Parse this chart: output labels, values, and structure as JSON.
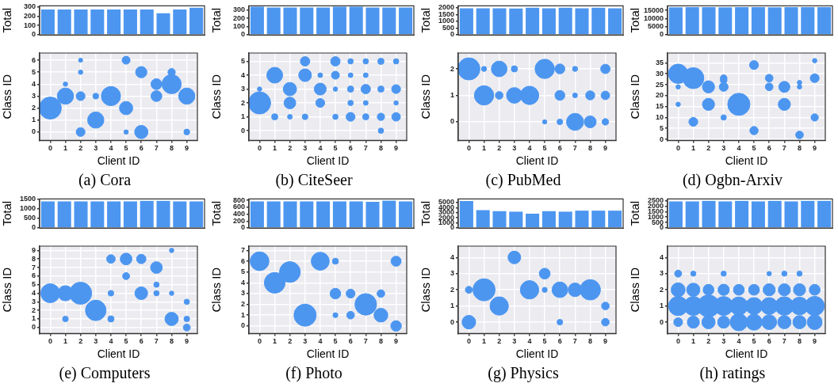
{
  "chart_data": [
    {
      "type": "bar",
      "ylabel": "Total",
      "categories": [
        null,
        null,
        null,
        null,
        null,
        null,
        null,
        null,
        null,
        null
      ],
      "values": [
        270,
        270,
        270,
        270,
        270,
        270,
        270,
        230,
        270,
        290
      ],
      "color": "#4c96f0",
      "ylim": [
        0,
        310
      ],
      "yticks": [
        0,
        100,
        200,
        300
      ],
      "tick_labels": "y"
    },
    {
      "type": "bubble",
      "xlabel": "Client ID",
      "ylabel": "Class ID",
      "color": "#4c96f0",
      "grid": true,
      "xlim": [
        -0.7,
        9.7
      ],
      "xticks": [
        0,
        1,
        2,
        3,
        4,
        5,
        6,
        7,
        8,
        9
      ],
      "ylim": [
        -0.7,
        6.6
      ],
      "yticks": [
        0,
        1,
        2,
        3,
        4,
        5,
        6
      ],
      "annotations": [
        "(a) Cora"
      ],
      "x": [
        0,
        1,
        1,
        2,
        2,
        2,
        2,
        3,
        3,
        4,
        5,
        5,
        5,
        6,
        6,
        7,
        7,
        8,
        8,
        9,
        9
      ],
      "values": [
        2,
        4,
        3,
        6,
        5,
        3,
        0,
        3,
        1,
        3,
        6,
        2,
        0,
        5,
        0,
        4,
        3,
        5,
        4,
        3,
        0
      ],
      "sizes": [
        1,
        0.04,
        0.54,
        0.035,
        0.04,
        0.16,
        0.16,
        0.07,
        0.54,
        0.75,
        0.13,
        0.36,
        0.04,
        0.26,
        0.36,
        0.24,
        0.24,
        0.11,
        0.75,
        0.54,
        0.07
      ]
    },
    {
      "type": "bar",
      "ylabel": "Total",
      "categories": [
        null,
        null,
        null,
        null,
        null,
        null,
        null,
        null,
        null,
        null
      ],
      "values": [
        340,
        330,
        330,
        330,
        330,
        340,
        340,
        330,
        330,
        330
      ],
      "color": "#4c96f0",
      "ylim": [
        0,
        350
      ],
      "yticks": [
        0,
        100,
        200,
        300
      ],
      "tick_labels": "y"
    },
    {
      "type": "bubble",
      "xlabel": "Client ID",
      "ylabel": "Class ID",
      "color": "#4c96f0",
      "grid": true,
      "xlim": [
        -0.7,
        9.7
      ],
      "xticks": [
        0,
        1,
        2,
        3,
        4,
        5,
        6,
        7,
        8,
        9
      ],
      "ylim": [
        -0.7,
        5.6
      ],
      "yticks": [
        0,
        1,
        2,
        3,
        4,
        5
      ],
      "annotations": [
        "(b) CiteSeer"
      ],
      "x": [
        0,
        0,
        1,
        1,
        2,
        2,
        2,
        3,
        3,
        3,
        4,
        4,
        4,
        5,
        5,
        5,
        5,
        6,
        6,
        6,
        6,
        6,
        7,
        7,
        7,
        7,
        7,
        8,
        8,
        8,
        8,
        9,
        9,
        9,
        9
      ],
      "values": [
        3,
        2,
        4,
        1,
        3,
        2,
        1,
        5,
        4,
        1,
        4,
        3,
        2,
        5,
        4,
        3,
        1,
        5,
        4,
        3,
        2,
        1,
        5,
        4,
        3,
        2,
        1,
        5,
        3,
        1,
        0,
        5,
        3,
        2,
        1
      ],
      "sizes": [
        0.04,
        1,
        0.51,
        0.08,
        0.36,
        0.28,
        0.046,
        0.18,
        0.33,
        0.066,
        0.046,
        0.29,
        0.16,
        0.18,
        0.13,
        0.04,
        0.059,
        0.059,
        0.046,
        0.08,
        0.059,
        0.16,
        0.059,
        0.046,
        0.18,
        0.046,
        0.08,
        0.08,
        0.08,
        0.11,
        0.059,
        0.059,
        0.16,
        0.04,
        0.15
      ]
    },
    {
      "type": "bar",
      "ylabel": "Total",
      "categories": [
        null,
        null,
        null,
        null,
        null,
        null,
        null,
        null,
        null,
        null
      ],
      "values": [
        1970,
        1970,
        1970,
        1960,
        2010,
        1970,
        2010,
        1970,
        2010,
        1970
      ],
      "color": "#4c96f0",
      "ylim": [
        0,
        2150
      ],
      "yticks": [
        0,
        500,
        1000,
        1500,
        2000
      ],
      "tick_labels": "y"
    },
    {
      "type": "bubble",
      "xlabel": "Client ID",
      "ylabel": "Class ID",
      "color": "#4c96f0",
      "grid": true,
      "xlim": [
        -0.7,
        9.7
      ],
      "xticks": [
        0,
        1,
        2,
        3,
        4,
        5,
        6,
        7,
        8,
        9
      ],
      "ylim": [
        -0.7,
        2.6
      ],
      "yticks": [
        0,
        1,
        2
      ],
      "annotations": [
        "(c) PubMed"
      ],
      "x": [
        0,
        1,
        1,
        2,
        2,
        3,
        3,
        4,
        5,
        5,
        6,
        6,
        6,
        7,
        7,
        7,
        8,
        8,
        9,
        9,
        9
      ],
      "values": [
        2,
        2,
        1,
        2,
        1,
        2,
        1,
        1,
        2,
        0,
        2,
        1,
        0,
        2,
        1,
        0,
        1,
        0,
        2,
        1,
        0
      ],
      "sizes": [
        1,
        0.053,
        0.76,
        0.5,
        0.12,
        0.08,
        0.5,
        0.69,
        0.76,
        0.037,
        0.2,
        0.2,
        0.066,
        0.053,
        0.048,
        0.59,
        0.17,
        0.29,
        0.18,
        0.15,
        0.087
      ]
    },
    {
      "type": "bar",
      "ylabel": "Total",
      "categories": [
        null,
        null,
        null,
        null,
        null,
        null,
        null,
        null,
        null,
        null
      ],
      "values": [
        16900,
        17000,
        17000,
        16900,
        17000,
        17000,
        16900,
        17000,
        17000,
        17000
      ],
      "color": "#4c96f0",
      "ylim": [
        0,
        17800
      ],
      "yticks": [
        0,
        5000,
        10000,
        15000
      ],
      "tick_labels": "y"
    },
    {
      "type": "bubble",
      "xlabel": "Client ID",
      "ylabel": "Class ID",
      "color": "#4c96f0",
      "grid": true,
      "xlim": [
        -0.7,
        9.7
      ],
      "xticks": [
        0,
        1,
        2,
        3,
        4,
        5,
        6,
        7,
        8,
        9
      ],
      "ylim": [
        -0.5,
        39.5
      ],
      "yticks": [
        0,
        5,
        10,
        15,
        20,
        25,
        30,
        35
      ],
      "annotations": [
        "(d) Ogbn-Arxiv"
      ],
      "x": [
        0,
        0,
        0,
        1,
        1,
        2,
        2,
        3,
        3,
        3,
        3,
        4,
        5,
        5,
        6,
        6,
        7,
        7,
        8,
        8,
        8,
        9,
        9,
        9
      ],
      "values": [
        30,
        24,
        16,
        28,
        8,
        24,
        16,
        28,
        27,
        24,
        10,
        16,
        34,
        4,
        28,
        24,
        24,
        16,
        26,
        24,
        2,
        36,
        28,
        10
      ],
      "sizes": [
        0.77,
        0.04,
        0.04,
        0.9,
        0.16,
        0.3,
        0.3,
        0.09,
        0.09,
        0.16,
        0.06,
        1,
        0.16,
        0.14,
        0.12,
        0.12,
        0.25,
        0.3,
        0.04,
        0.04,
        0.12,
        0.04,
        0.16,
        0.11
      ]
    },
    {
      "type": "bar",
      "ylabel": "Total",
      "categories": [
        null,
        null,
        null,
        null,
        null,
        null,
        null,
        null,
        null,
        null
      ],
      "values": [
        1370,
        1370,
        1370,
        1370,
        1370,
        1370,
        1400,
        1400,
        1370,
        1370
      ],
      "color": "#4c96f0",
      "ylim": [
        0,
        1500
      ],
      "yticks": [
        0,
        500,
        1000,
        1500
      ],
      "tick_labels": "y"
    },
    {
      "type": "bubble",
      "xlabel": "Client ID",
      "ylabel": "Class ID",
      "color": "#4c96f0",
      "grid": true,
      "xlim": [
        -0.7,
        9.7
      ],
      "xticks": [
        0,
        1,
        2,
        3,
        4,
        5,
        6,
        7,
        8,
        9
      ],
      "ylim": [
        -0.7,
        9.5
      ],
      "yticks": [
        0,
        1,
        2,
        3,
        4,
        5,
        6,
        7,
        8,
        9
      ],
      "annotations": [
        "(e) Computers"
      ],
      "x": [
        0,
        1,
        1,
        2,
        3,
        4,
        4,
        4,
        5,
        5,
        6,
        6,
        7,
        7,
        7,
        8,
        8,
        8,
        9,
        9,
        9
      ],
      "values": [
        4,
        4,
        1,
        4,
        2,
        8,
        4,
        1,
        8,
        6,
        8,
        4,
        7,
        5,
        4,
        9,
        4,
        1,
        3,
        1,
        0
      ],
      "sizes": [
        0.73,
        0.47,
        0.066,
        1,
        0.86,
        0.15,
        0.066,
        0.08,
        0.28,
        0.1,
        0.18,
        0.33,
        0.28,
        0.059,
        0.059,
        0.04,
        0.04,
        0.36,
        0.059,
        0.066,
        0.1
      ]
    },
    {
      "type": "bar",
      "ylabel": "Total",
      "categories": [
        null,
        null,
        null,
        null,
        null,
        null,
        null,
        null,
        null,
        null
      ],
      "values": [
        770,
        770,
        770,
        770,
        770,
        770,
        770,
        760,
        790,
        770
      ],
      "color": "#4c96f0",
      "ylim": [
        0,
        840
      ],
      "yticks": [
        0,
        200,
        400,
        600,
        800
      ],
      "tick_labels": "y"
    },
    {
      "type": "bubble",
      "xlabel": "Client ID",
      "ylabel": "Class ID",
      "color": "#4c96f0",
      "grid": true,
      "xlim": [
        -0.7,
        9.7
      ],
      "xticks": [
        0,
        1,
        2,
        3,
        4,
        5,
        6,
        7,
        8,
        9
      ],
      "ylim": [
        -0.7,
        7.4
      ],
      "yticks": [
        0,
        1,
        2,
        3,
        4,
        5,
        6,
        7
      ],
      "annotations": [
        "(f) Photo"
      ],
      "x": [
        0,
        1,
        2,
        3,
        4,
        5,
        5,
        5,
        6,
        6,
        7,
        8,
        8,
        9,
        9
      ],
      "values": [
        6,
        4,
        5,
        1,
        6,
        6,
        3,
        1,
        3,
        1,
        2,
        3,
        1,
        6,
        0
      ],
      "sizes": [
        0.72,
        0.88,
        0.88,
        1,
        0.66,
        0.076,
        0.23,
        0.05,
        0.16,
        0.12,
        0.95,
        0.12,
        0.39,
        0.21,
        0.23
      ]
    },
    {
      "type": "bar",
      "ylabel": "Total",
      "categories": [
        null,
        null,
        null,
        null,
        null,
        null,
        null,
        null,
        null,
        null
      ],
      "values": [
        5300,
        3500,
        3300,
        3200,
        2800,
        3300,
        3200,
        3400,
        3400,
        3400
      ],
      "color": "#4c96f0",
      "ylim": [
        0,
        5700
      ],
      "yticks": [
        0,
        1000,
        2000,
        3000,
        4000,
        5000
      ],
      "tick_labels": "y"
    },
    {
      "type": "bubble",
      "xlabel": "Client ID",
      "ylabel": "Class ID",
      "color": "#4c96f0",
      "grid": true,
      "xlim": [
        -0.7,
        9.7
      ],
      "xticks": [
        0,
        1,
        2,
        3,
        4,
        5,
        6,
        7,
        8,
        9
      ],
      "ylim": [
        -0.7,
        4.7
      ],
      "yticks": [
        0,
        1,
        2,
        3,
        4
      ],
      "annotations": [
        "(g) Physics"
      ],
      "x": [
        0,
        0,
        1,
        2,
        3,
        4,
        5,
        5,
        6,
        6,
        7,
        8,
        9,
        9
      ],
      "values": [
        2,
        0,
        2,
        1,
        4,
        2,
        3,
        2,
        2,
        0,
        2,
        2,
        1,
        0
      ],
      "sizes": [
        0.1,
        0.38,
        1,
        0.69,
        0.33,
        0.69,
        0.24,
        0.053,
        0.5,
        0.066,
        0.38,
        0.85,
        0.12,
        0.12
      ]
    },
    {
      "type": "bar",
      "ylabel": "Total",
      "categories": [
        null,
        null,
        null,
        null,
        null,
        null,
        null,
        null,
        null,
        null
      ],
      "values": [
        2420,
        2420,
        2480,
        2420,
        2480,
        2420,
        2480,
        2420,
        2480,
        2480
      ],
      "color": "#4c96f0",
      "ylim": [
        0,
        2650
      ],
      "yticks": [
        0,
        500,
        1000,
        1500,
        2000,
        2500
      ],
      "tick_labels": "y"
    },
    {
      "type": "bubble",
      "xlabel": "Client ID",
      "ylabel": "Class ID",
      "color": "#4c96f0",
      "grid": true,
      "xlim": [
        -0.7,
        9.7
      ],
      "xticks": [
        0,
        1,
        2,
        3,
        4,
        5,
        6,
        7,
        8,
        9
      ],
      "ylim": [
        -0.7,
        4.7
      ],
      "yticks": [
        0,
        1,
        2,
        3,
        4
      ],
      "annotations": [
        "(h) ratings"
      ],
      "x": [
        0,
        0,
        0,
        0,
        1,
        1,
        1,
        1,
        2,
        2,
        2,
        3,
        3,
        3,
        3,
        4,
        4,
        4,
        5,
        5,
        5,
        6,
        6,
        6,
        6,
        7,
        7,
        7,
        7,
        8,
        8,
        8,
        8,
        9,
        9,
        9
      ],
      "values": [
        3,
        2,
        1,
        0,
        3,
        2,
        1,
        0,
        2,
        1,
        0,
        3,
        2,
        1,
        0,
        2,
        1,
        0,
        2,
        1,
        0,
        3,
        2,
        1,
        0,
        3,
        2,
        1,
        0,
        3,
        2,
        1,
        0,
        2,
        1,
        0
      ],
      "sizes": [
        0.1,
        0.4,
        0.76,
        0.16,
        0.056,
        0.36,
        0.73,
        0.3,
        0.24,
        1,
        0.36,
        0.056,
        0.26,
        0.73,
        0.3,
        0.24,
        0.67,
        0.61,
        0.24,
        0.58,
        0.53,
        0.04,
        0.3,
        0.58,
        0.45,
        0.056,
        0.3,
        0.7,
        0.36,
        0.056,
        0.3,
        0.64,
        0.36,
        0.24,
        0.76,
        0.45
      ]
    }
  ]
}
